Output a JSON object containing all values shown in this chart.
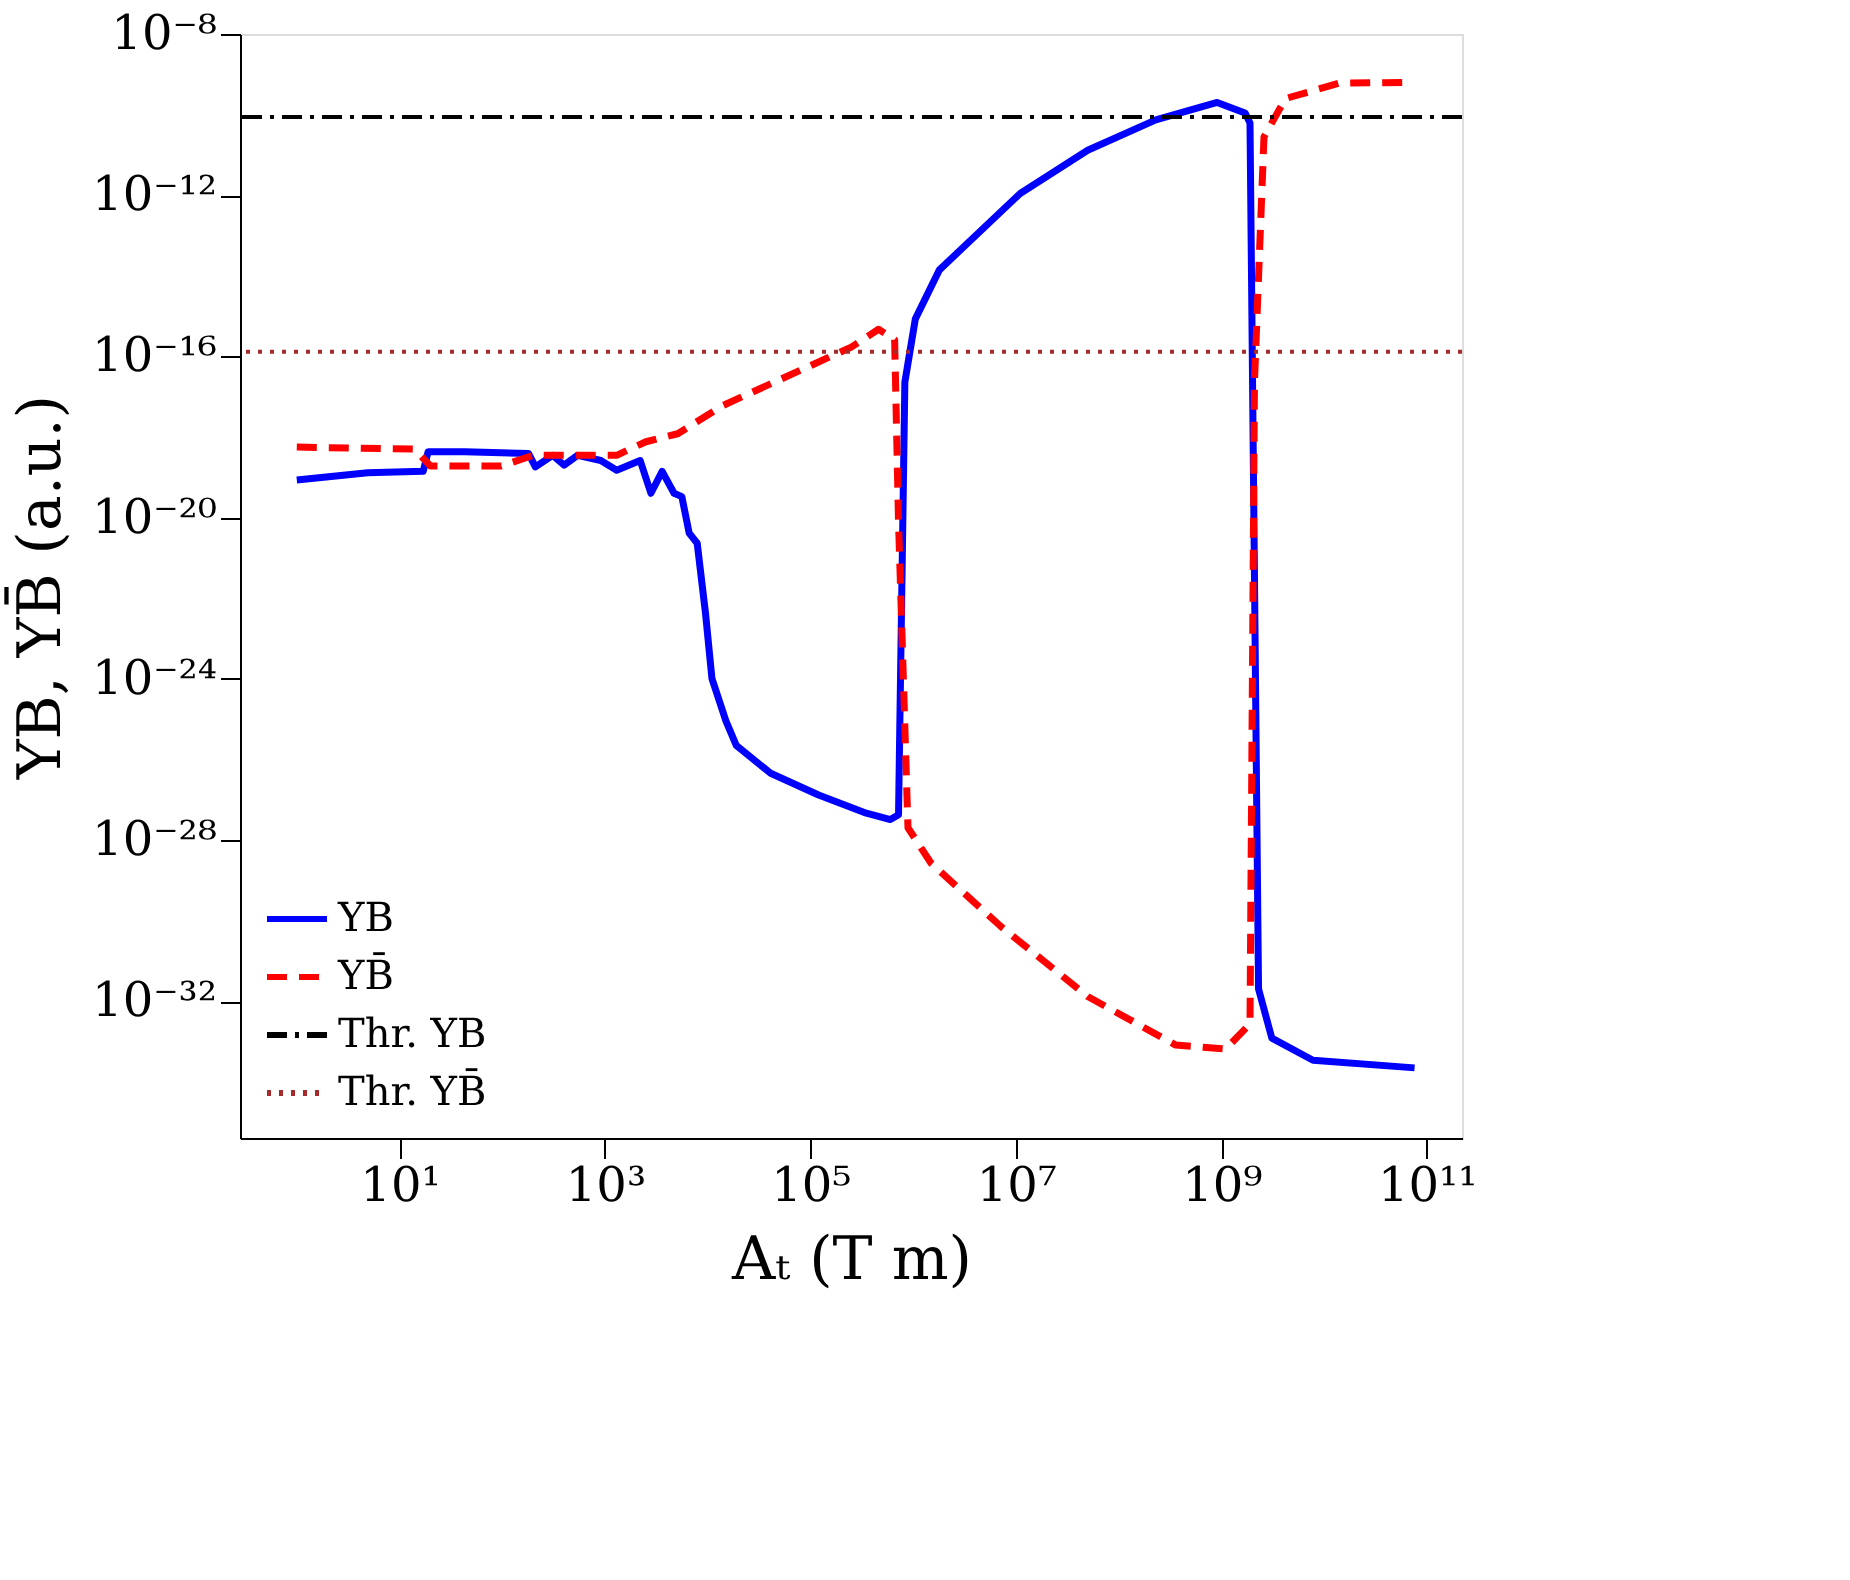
{
  "chart_data": {
    "type": "line",
    "xlabel": "Aₜ (T m)",
    "ylabel": "YB, YB̄ (a.u.)",
    "log": "xy",
    "xlim": [
      0.28,
      220000000000.0
    ],
    "ylim": [
      4e-36,
      1e-08
    ],
    "xticks": [
      {
        "value": 10,
        "label": "10¹"
      },
      {
        "value": 1000,
        "label": "10³"
      },
      {
        "value": 100000,
        "label": "10⁵"
      },
      {
        "value": 10000000,
        "label": "10⁷"
      },
      {
        "value": 1000000000,
        "label": "10⁹"
      },
      {
        "value": 100000000000,
        "label": "10¹¹"
      }
    ],
    "yticks": [
      {
        "value": 1e-08,
        "label": "10⁻⁸"
      },
      {
        "value": 1e-12,
        "label": "10⁻¹²"
      },
      {
        "value": 1e-16,
        "label": "10⁻¹⁶"
      },
      {
        "value": 1e-20,
        "label": "10⁻²⁰"
      },
      {
        "value": 1e-24,
        "label": "10⁻²⁴"
      },
      {
        "value": 1e-28,
        "label": "10⁻²⁸"
      },
      {
        "value": 1e-32,
        "label": "10⁻³²"
      }
    ],
    "grid": false,
    "legend": "bottom left",
    "marker": "none",
    "series": [
      {
        "name": "YB",
        "color": "#0000ff",
        "line_style": "solid",
        "x": [
          1,
          4.9,
          17,
          19,
          43,
          180,
          210,
          310,
          400,
          540,
          910,
          1300,
          2200,
          2800,
          3600,
          4700,
          5600,
          6600,
          7900,
          9500,
          11000,
          15000,
          19000,
          41000,
          120000,
          350000,
          600000,
          720000,
          830000,
          1050000,
          1800000,
          11000000,
          50000000,
          230000000,
          910000000,
          1700000000,
          1900000000,
          2300000000,
          3100000000,
          7800000000,
          76000000000
        ],
        "values": [
          8.5e-20,
          1.3e-19,
          1.4e-19,
          4.3e-19,
          4.3e-19,
          3.9e-19,
          1.8e-19,
          3.5e-19,
          2e-19,
          3.5e-19,
          2.6e-19,
          1.5e-19,
          2.6e-19,
          4e-20,
          1.4e-19,
          4e-20,
          3.3e-20,
          4.1e-21,
          2.3e-21,
          4.4e-23,
          1e-24,
          9.1e-26,
          2.2e-26,
          4.5e-27,
          1.3e-27,
          4.6e-28,
          3.2e-28,
          4.2e-28,
          2.3e-17,
          8.5e-16,
          1.4e-14,
          1.1e-12,
          1.3e-11,
          7.4e-11,
          2e-10,
          1.1e-10,
          6.2e-11,
          2e-32,
          1.2e-33,
          3.4e-34,
          2.2e-34
        ]
      },
      {
        "name": "YB̄",
        "color": "#ff0000",
        "line_style": "dashed",
        "x": [
          1,
          14,
          20,
          98,
          200,
          1300,
          2500,
          5100,
          14000,
          250000,
          460000,
          660000,
          720000,
          890000,
          1500000,
          7100000,
          50000000,
          360000000,
          1100000000,
          1900000000,
          2100000000,
          2600000000,
          4200000000,
          14000000000,
          65000000000
        ],
        "values": [
          5.6e-19,
          5e-19,
          1.9e-19,
          1.9e-19,
          3.5e-19,
          3.5e-19,
          7.6e-19,
          1.2e-18,
          6e-18,
          1.7e-16,
          4.7e-16,
          2.6e-16,
          7.9e-21,
          2e-28,
          2.6e-29,
          7.2e-31,
          1.3e-32,
          8.1e-34,
          6.5e-34,
          2.7e-33,
          2.3e-17,
          2.8e-11,
          2.5e-10,
          6e-10,
          6.3e-10
        ]
      }
    ],
    "ref_lines": [
      {
        "axis": "y",
        "value": 8.7e-11,
        "label": "Thr. YB",
        "color": "#000000",
        "line_style": "dashdot"
      },
      {
        "axis": "y",
        "value": 1.3e-16,
        "label": "Thr. YB̄",
        "color": "#a52a2a",
        "line_style": "dotted"
      }
    ]
  }
}
